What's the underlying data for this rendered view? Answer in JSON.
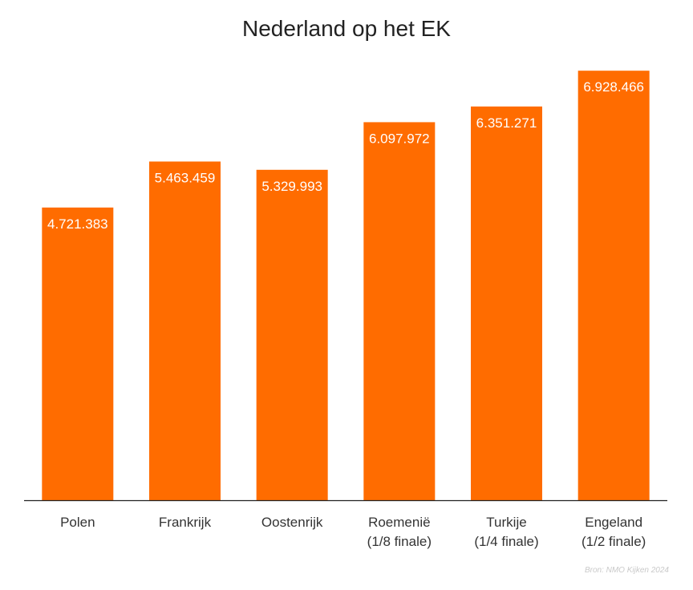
{
  "title": "Nederland op het EK",
  "source": "Bron: NMO Kijken 2024",
  "colors": {
    "bar": "#ff6c00",
    "value_label": "#ffffff",
    "axis": "#222222",
    "category_label": "#333333"
  },
  "chart_data": {
    "type": "bar",
    "title": "Nederland op het EK",
    "xlabel": "",
    "ylabel": "",
    "grid": false,
    "ylim": [
      0,
      7500000
    ],
    "categories": [
      [
        "Polen"
      ],
      [
        "Frankrijk"
      ],
      [
        "Oostenrijk"
      ],
      [
        "Roemenië",
        "(1/8 finale)"
      ],
      [
        "Turkije",
        "(1/4 finale)"
      ],
      [
        "Engeland",
        "(1/2 finale)"
      ]
    ],
    "values": [
      4721383,
      5463459,
      5329993,
      6097972,
      6351271,
      6928466
    ],
    "value_labels": [
      "4.721.383",
      "5.463.459",
      "5.329.993",
      "6.097.972",
      "6.351.271",
      "6.928.466"
    ]
  }
}
